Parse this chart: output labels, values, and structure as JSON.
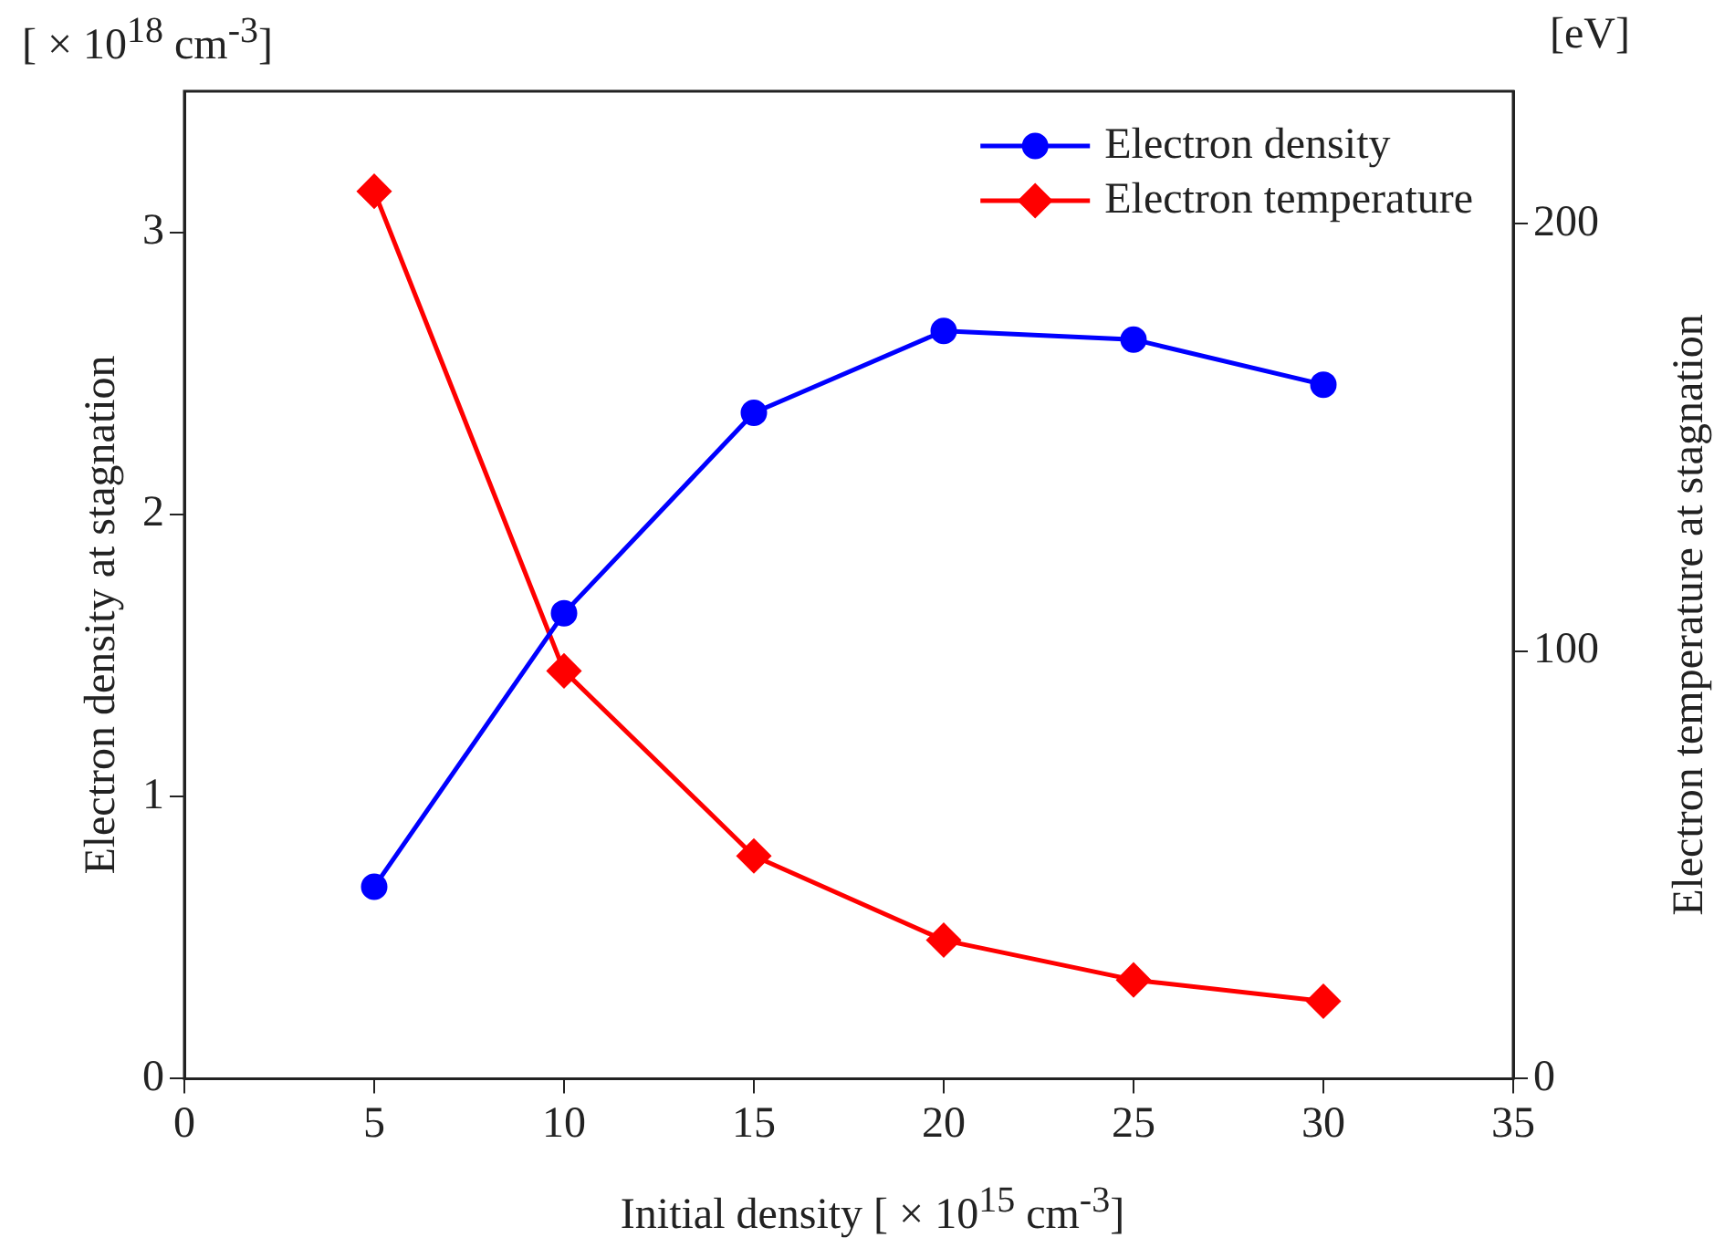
{
  "chart_data": {
    "type": "line",
    "xlabel": "Initial density [ × 10$^{15}$ cm$^{-3}$]",
    "ylabel": "Electron density at stagnation",
    "y2label": "Electron temperature at stagnation",
    "x": [
      5,
      10,
      15,
      20,
      25,
      30
    ],
    "series": [
      {
        "name": "Electron density",
        "color": "#0000ff",
        "marker": "circle",
        "values": [
          0.68,
          1.65,
          2.36,
          2.65,
          2.62,
          2.46
        ]
      },
      {
        "name": "Electron temperature",
        "color": "#ff0000",
        "marker": "diamond",
        "axis": "y2",
        "values": [
          207.6,
          95.4,
          52.1,
          32.4,
          23.1,
          18.1
        ]
      }
    ],
    "xlim": [
      0,
      35
    ],
    "xticks": [
      0,
      5,
      10,
      15,
      20,
      25,
      30,
      35
    ],
    "ylim": [
      0,
      3.5
    ],
    "yticks": [
      0,
      1,
      2,
      3
    ],
    "y2lim": [
      0,
      231
    ],
    "y2ticks": [
      0,
      100,
      200
    ],
    "annotations": [
      "[ × 10$^{18}$ cm$^{-3}$]",
      "[eV]"
    ],
    "legend": "top right",
    "grid": false
  }
}
